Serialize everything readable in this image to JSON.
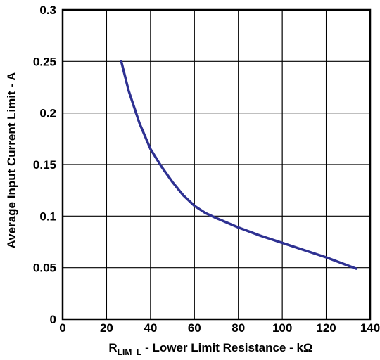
{
  "chart_data": {
    "type": "line",
    "xlabel": {
      "main": "R",
      "sub": "LIM_L",
      "rest": " - Lower Limit Resistance  - kΩ"
    },
    "ylabel": "Average Input Current Limit - A",
    "xlim": [
      0,
      140
    ],
    "ylim": [
      0,
      0.3
    ],
    "x_ticks": [
      0,
      20,
      40,
      60,
      80,
      100,
      120,
      140
    ],
    "y_ticks": [
      0,
      0.05,
      0.1,
      0.15,
      0.2,
      0.25,
      0.3
    ],
    "x_tick_labels": [
      "0",
      "20",
      "40",
      "60",
      "80",
      "100",
      "120",
      "140"
    ],
    "y_tick_labels": [
      "0",
      "0.05",
      "0.1",
      "0.15",
      "0.2",
      "0.25",
      "0.3"
    ],
    "grid": true,
    "series": [
      {
        "color": "#2e3192",
        "x": [
          26.7,
          30,
          35,
          40,
          45,
          50,
          55,
          60,
          65,
          70,
          80,
          90,
          100,
          110,
          120,
          133.7
        ],
        "y": [
          0.25,
          0.222,
          0.19,
          0.165,
          0.148,
          0.133,
          0.12,
          0.11,
          0.103,
          0.098,
          0.089,
          0.081,
          0.074,
          0.067,
          0.06,
          0.049
        ]
      }
    ]
  }
}
